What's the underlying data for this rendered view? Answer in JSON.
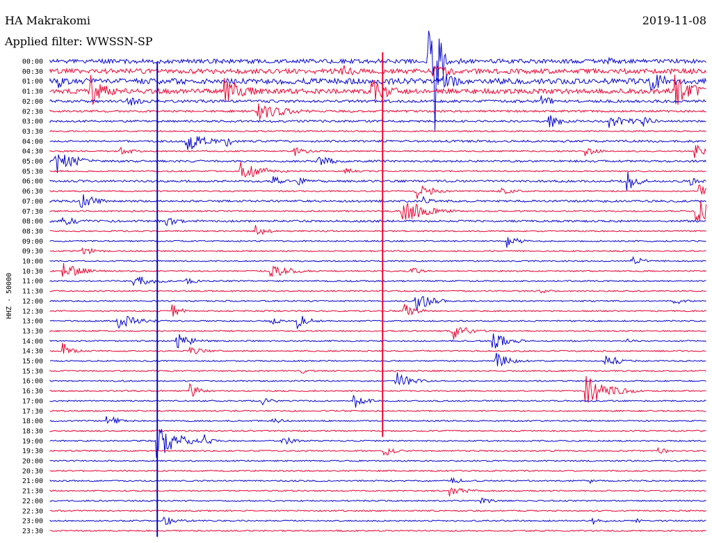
{
  "header": {
    "station": "HA Makrakomi",
    "filter": "Applied filter: WWSSN-SP",
    "date": "2019-11-08"
  },
  "chart_data": {
    "type": "line",
    "title": "HA Makrakomi",
    "subtitle": "Applied filter: WWSSN-SP",
    "date": "2019-11-08",
    "ylabel": "HHZ - 50000",
    "row_labels": [
      "00:00",
      "00:30",
      "01:00",
      "01:30",
      "02:00",
      "02:30",
      "03:00",
      "03:30",
      "04:00",
      "04:30",
      "05:00",
      "05:30",
      "06:00",
      "06:30",
      "07:00",
      "07:30",
      "08:00",
      "08:30",
      "09:00",
      "09:30",
      "10:00",
      "10:30",
      "11:00",
      "11:30",
      "12:00",
      "12:30",
      "13:00",
      "13:30",
      "14:00",
      "14:30",
      "15:00",
      "15:30",
      "16:00",
      "16:30",
      "17:00",
      "17:30",
      "18:00",
      "18:30",
      "19:00",
      "19:30",
      "20:00",
      "20:30",
      "21:00",
      "21:30",
      "22:00",
      "22:30",
      "23:00",
      "23:30"
    ],
    "row_minutes": 30,
    "colors": {
      "odd_row": "#0000cc",
      "even_row": "#e8002f",
      "text": "#000000"
    },
    "noise_levels": [
      6,
      7,
      8,
      7,
      4,
      3,
      3,
      2,
      3,
      2,
      3,
      2,
      3,
      2,
      3,
      2,
      3,
      2,
      2,
      2,
      2,
      2,
      2,
      2,
      2,
      2,
      2,
      2,
      2,
      2,
      2,
      2,
      2,
      2,
      2,
      2,
      2,
      2,
      2,
      2,
      2,
      2,
      2,
      2,
      2,
      2,
      2,
      2
    ],
    "events": [
      {
        "row": 0,
        "minute": 18,
        "amplitude": 6,
        "duration": 1.5
      },
      {
        "row": 0,
        "minute": 25.5,
        "amplitude": 6,
        "duration": 1.5
      },
      {
        "row": 0,
        "minute": 18.7,
        "amplitude": 6,
        "duration": 1
      },
      {
        "row": 0,
        "minute": 17.3,
        "amplitude": 60,
        "duration": 1
      },
      {
        "row": 0,
        "minute": 17.6,
        "amplitude": 130,
        "duration": 0.6
      },
      {
        "row": 1,
        "minute": 13.3,
        "amplitude": 10,
        "duration": 2.5
      },
      {
        "row": 1,
        "minute": 17.5,
        "amplitude": 12,
        "duration": 3
      },
      {
        "row": 2,
        "minute": 0.4,
        "amplitude": 12,
        "duration": 1.5
      },
      {
        "row": 2,
        "minute": 18,
        "amplitude": 12,
        "duration": 3
      },
      {
        "row": 2,
        "minute": 27.5,
        "amplitude": 14,
        "duration": 3
      },
      {
        "row": 3,
        "minute": 1.8,
        "amplitude": 25,
        "duration": 2.5
      },
      {
        "row": 3,
        "minute": 8,
        "amplitude": 20,
        "duration": 3
      },
      {
        "row": 3,
        "minute": 14.7,
        "amplitude": 20,
        "duration": 2.5
      },
      {
        "row": 3,
        "minute": 28.6,
        "amplitude": 25,
        "duration": 2.5
      },
      {
        "row": 4,
        "minute": 3.5,
        "amplitude": 8,
        "duration": 2.5
      },
      {
        "row": 4,
        "minute": 22.5,
        "amplitude": 8,
        "duration": 2
      },
      {
        "row": 5,
        "minute": 9.5,
        "amplitude": 14,
        "duration": 3.5
      },
      {
        "row": 6,
        "minute": 22.8,
        "amplitude": 12,
        "duration": 2
      },
      {
        "row": 6,
        "minute": 25.6,
        "amplitude": 14,
        "duration": 2.5
      },
      {
        "row": 6,
        "minute": 27,
        "amplitude": 10,
        "duration": 1.5
      },
      {
        "row": 8,
        "minute": 6.2,
        "amplitude": 16,
        "duration": 2.5
      },
      {
        "row": 8,
        "minute": 8.1,
        "amplitude": 8,
        "duration": 1
      },
      {
        "row": 9,
        "minute": 3.2,
        "amplitude": 6,
        "duration": 2
      },
      {
        "row": 9,
        "minute": 11.2,
        "amplitude": 8,
        "duration": 1.5
      },
      {
        "row": 9,
        "minute": 24.5,
        "amplitude": 8,
        "duration": 1.5
      },
      {
        "row": 9,
        "minute": 29.5,
        "amplitude": 12,
        "duration": 1.5
      },
      {
        "row": 10,
        "minute": 0.2,
        "amplitude": 20,
        "duration": 2.5
      },
      {
        "row": 10,
        "minute": 12.2,
        "amplitude": 10,
        "duration": 2
      },
      {
        "row": 11,
        "minute": 8.7,
        "amplitude": 14,
        "duration": 3
      },
      {
        "row": 11,
        "minute": 13.4,
        "amplitude": 6,
        "duration": 1.5
      },
      {
        "row": 12,
        "minute": 10.2,
        "amplitude": 8,
        "duration": 1.5
      },
      {
        "row": 12,
        "minute": 11.2,
        "amplitude": 8,
        "duration": 1.5
      },
      {
        "row": 12,
        "minute": 26.4,
        "amplitude": 14,
        "duration": 1.5
      },
      {
        "row": 12,
        "minute": 29.3,
        "amplitude": 6,
        "duration": 2
      },
      {
        "row": 13,
        "minute": 16.7,
        "amplitude": 14,
        "duration": 2
      },
      {
        "row": 13,
        "minute": 20.5,
        "amplitude": 6,
        "duration": 2
      },
      {
        "row": 13,
        "minute": 29.6,
        "amplitude": 12,
        "duration": 1.5
      },
      {
        "row": 14,
        "minute": 1.4,
        "amplitude": 14,
        "duration": 2
      },
      {
        "row": 14,
        "minute": 17.1,
        "amplitude": 8,
        "duration": 1
      },
      {
        "row": 15,
        "minute": 16.1,
        "amplitude": 18,
        "duration": 3
      },
      {
        "row": 15,
        "minute": 29.5,
        "amplitude": 20,
        "duration": 2.5
      },
      {
        "row": 16,
        "minute": 0.5,
        "amplitude": 8,
        "duration": 2.5
      },
      {
        "row": 16,
        "minute": 5.3,
        "amplitude": 10,
        "duration": 1.5
      },
      {
        "row": 17,
        "minute": 9.4,
        "amplitude": 10,
        "duration": 1.5
      },
      {
        "row": 18,
        "minute": 20.9,
        "amplitude": 10,
        "duration": 1.5
      },
      {
        "row": 19,
        "minute": 1.5,
        "amplitude": 6,
        "duration": 2
      },
      {
        "row": 20,
        "minute": 26.6,
        "amplitude": 8,
        "duration": 1.5
      },
      {
        "row": 21,
        "minute": 0.6,
        "amplitude": 12,
        "duration": 2.5
      },
      {
        "row": 21,
        "minute": 10.1,
        "amplitude": 12,
        "duration": 2.5
      },
      {
        "row": 21,
        "minute": 16.5,
        "amplitude": 6,
        "duration": 1.5
      },
      {
        "row": 22,
        "minute": 3.8,
        "amplitude": 10,
        "duration": 2.5
      },
      {
        "row": 22,
        "minute": 6.2,
        "amplitude": 6,
        "duration": 1.5
      },
      {
        "row": 23,
        "minute": 22.4,
        "amplitude": 4,
        "duration": 2
      },
      {
        "row": 24,
        "minute": 16.7,
        "amplitude": 16,
        "duration": 2
      },
      {
        "row": 24,
        "minute": 28.5,
        "amplitude": 6,
        "duration": 1.5
      },
      {
        "row": 25,
        "minute": 5.6,
        "amplitude": 12,
        "duration": 1
      },
      {
        "row": 25,
        "minute": 16.2,
        "amplitude": 12,
        "duration": 1.5
      },
      {
        "row": 26,
        "minute": 3.1,
        "amplitude": 12,
        "duration": 2.5
      },
      {
        "row": 26,
        "minute": 10.1,
        "amplitude": 6,
        "duration": 1.5
      },
      {
        "row": 26,
        "minute": 11.3,
        "amplitude": 12,
        "duration": 1.5
      },
      {
        "row": 27,
        "minute": 18.4,
        "amplitude": 14,
        "duration": 2
      },
      {
        "row": 28,
        "minute": 5.8,
        "amplitude": 12,
        "duration": 2
      },
      {
        "row": 28,
        "minute": 20.2,
        "amplitude": 16,
        "duration": 2
      },
      {
        "row": 28,
        "minute": 26.3,
        "amplitude": 4,
        "duration": 1
      },
      {
        "row": 29,
        "minute": 0.6,
        "amplitude": 12,
        "duration": 1.5
      },
      {
        "row": 29,
        "minute": 6.4,
        "amplitude": 6,
        "duration": 2.5
      },
      {
        "row": 30,
        "minute": 20.4,
        "amplitude": 12,
        "duration": 2
      },
      {
        "row": 30,
        "minute": 25.4,
        "amplitude": 10,
        "duration": 2
      },
      {
        "row": 31,
        "minute": 11.5,
        "amplitude": 4,
        "duration": 1.5
      },
      {
        "row": 32,
        "minute": 15.8,
        "amplitude": 14,
        "duration": 2
      },
      {
        "row": 33,
        "minute": 6.4,
        "amplitude": 10,
        "duration": 1.5
      },
      {
        "row": 33,
        "minute": 24.5,
        "amplitude": 22,
        "duration": 3
      },
      {
        "row": 34,
        "minute": 9.7,
        "amplitude": 6,
        "duration": 1.5
      },
      {
        "row": 34,
        "minute": 13.9,
        "amplitude": 12,
        "duration": 1.5
      },
      {
        "row": 36,
        "minute": 2.6,
        "amplitude": 10,
        "duration": 1.5
      },
      {
        "row": 36,
        "minute": 10.2,
        "amplitude": 4,
        "duration": 2
      },
      {
        "row": 38,
        "minute": 4.9,
        "amplitude": 26,
        "duration": 3
      },
      {
        "row": 38,
        "minute": 7.1,
        "amplitude": 8,
        "duration": 1
      },
      {
        "row": 38,
        "minute": 10.6,
        "amplitude": 8,
        "duration": 1.5
      },
      {
        "row": 39,
        "minute": 15.3,
        "amplitude": 8,
        "duration": 1.5
      },
      {
        "row": 39,
        "minute": 27.8,
        "amplitude": 6,
        "duration": 1.5
      },
      {
        "row": 42,
        "minute": 18.4,
        "amplitude": 8,
        "duration": 1
      },
      {
        "row": 42,
        "minute": 24.6,
        "amplitude": 6,
        "duration": 1
      },
      {
        "row": 43,
        "minute": 18.3,
        "amplitude": 8,
        "duration": 2
      },
      {
        "row": 44,
        "minute": 19.7,
        "amplitude": 6,
        "duration": 1.5
      },
      {
        "row": 46,
        "minute": 5.2,
        "amplitude": 10,
        "duration": 2
      },
      {
        "row": 46,
        "minute": 24.8,
        "amplitude": 6,
        "duration": 1.5
      },
      {
        "row": 46,
        "minute": 26.8,
        "amplitude": 4,
        "duration": 1
      }
    ],
    "spikes": [
      {
        "minute": 4.9,
        "row_from": 1,
        "row_to": 47
      },
      {
        "minute": 15.2,
        "row_from": 0,
        "row_to": 37
      }
    ]
  }
}
